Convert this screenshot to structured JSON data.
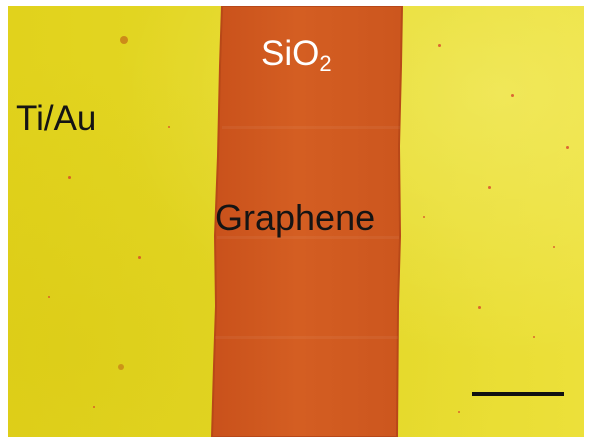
{
  "image": {
    "labels": {
      "metal": "Ti/Au",
      "oxide_base": "SiO",
      "oxide_subscript": "2",
      "material": "Graphene"
    },
    "colors": {
      "gold_electrode": "#e4d725",
      "graphene_channel": "#cf5a1e",
      "channel_edge": "#c24a1a",
      "scale_bar": "#111111"
    }
  }
}
